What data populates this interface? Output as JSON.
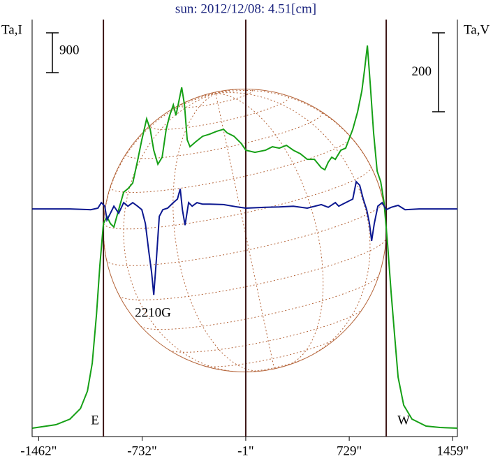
{
  "chart_data": {
    "type": "line",
    "title": "sun: 2012/12/08: 4.51[cm]",
    "xlim": [
      -1508,
      1492
    ],
    "xticks": [
      {
        "value": -1462,
        "label": "-1462\""
      },
      {
        "value": -732,
        "label": "-732\""
      },
      {
        "value": -1,
        "label": "-1\""
      },
      {
        "value": 729,
        "label": "729\""
      },
      {
        "value": 1459,
        "label": "1459\""
      }
    ],
    "ylim": [
      -190,
      9240
    ],
    "y2lim": [
      -577,
      480
    ],
    "ylabel": "Ta,I",
    "y2label": "Ta,V",
    "center_line": -1,
    "limb_lines": [
      {
        "x": -1005,
        "label": "E"
      },
      {
        "x": 990,
        "label": "W"
      }
    ],
    "annotation": "2210G",
    "series": [
      {
        "name": "Ta,I",
        "color": "#16a016",
        "scale_bar": 900,
        "x": [
          -1507,
          -1340,
          -1241,
          -1167,
          -1118,
          -1084,
          -1054,
          -1030,
          -1005,
          -980,
          -956,
          -931,
          -897,
          -862,
          -832,
          -798,
          -764,
          -734,
          -700,
          -675,
          -650,
          -621,
          -591,
          -562,
          -537,
          -512,
          -493,
          -478,
          -453,
          -433,
          -414,
          -394,
          -355,
          -305,
          -256,
          -207,
          -158,
          -133,
          -84,
          -34,
          0,
          64,
          138,
          187,
          236,
          286,
          335,
          384,
          433,
          483,
          532,
          557,
          581,
          606,
          631,
          670,
          704,
          754,
          788,
          818,
          837,
          857,
          877,
          901,
          926,
          951,
          975,
          1000,
          1025,
          1049,
          1074,
          1113,
          1172,
          1271,
          1369,
          1493
        ],
        "values": [
          0,
          79,
          205,
          442,
          837,
          1468,
          2574,
          3679,
          4626,
          4784,
          4626,
          4548,
          4942,
          5337,
          5416,
          5542,
          6048,
          6521,
          6995,
          6758,
          6284,
          5969,
          6127,
          6758,
          7074,
          7311,
          7074,
          7311,
          7706,
          7311,
          6521,
          6363,
          6474,
          6600,
          6648,
          6711,
          6758,
          6679,
          6600,
          6442,
          6284,
          6237,
          6284,
          6363,
          6332,
          6395,
          6284,
          6205,
          6079,
          6079,
          5890,
          5842,
          6016,
          6127,
          6079,
          6284,
          6332,
          6758,
          7153,
          7627,
          8100,
          8653,
          7784,
          6679,
          5811,
          5574,
          5100,
          4153,
          3047,
          2100,
          1153,
          521,
          205,
          47,
          16,
          0
        ]
      },
      {
        "name": "Ta,V",
        "color": "#0c1890",
        "axis": "y2",
        "scale_bar": 200,
        "x": [
          -1507,
          -1241,
          -1094,
          -1044,
          -1020,
          -995,
          -980,
          -956,
          -931,
          -897,
          -862,
          -832,
          -798,
          -764,
          -734,
          -709,
          -685,
          -665,
          -650,
          -631,
          -611,
          -586,
          -552,
          -512,
          -483,
          -463,
          -448,
          -429,
          -404,
          -379,
          -345,
          -305,
          -256,
          -158,
          -59,
          0,
          138,
          236,
          335,
          433,
          532,
          581,
          631,
          655,
          704,
          754,
          778,
          803,
          828,
          852,
          872,
          887,
          906,
          931,
          961,
          990,
          1025,
          1074,
          1123,
          1222,
          1493
        ],
        "values": [
          0,
          0,
          -2,
          2,
          16,
          7,
          -28,
          -11,
          7,
          -11,
          16,
          7,
          16,
          7,
          -2,
          -37,
          -108,
          -161,
          -218,
          -127,
          -19,
          -2,
          2,
          16,
          25,
          51,
          -2,
          -41,
          16,
          7,
          16,
          12,
          12,
          11,
          5,
          2,
          4,
          5,
          7,
          2,
          11,
          4,
          16,
          7,
          16,
          25,
          69,
          60,
          25,
          -2,
          -37,
          -81,
          -37,
          7,
          16,
          -2,
          4,
          9,
          -2,
          0,
          0
        ]
      }
    ]
  }
}
